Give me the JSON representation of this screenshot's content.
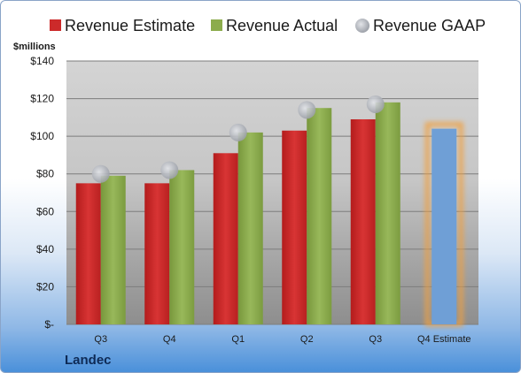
{
  "chart_data": {
    "type": "bar",
    "categories": [
      "Q3",
      "Q4",
      "Q1",
      "Q2",
      "Q3",
      "Q4 Estimate"
    ],
    "series": [
      {
        "name": "Revenue Estimate",
        "values": [
          75,
          75,
          91,
          103,
          109,
          null
        ],
        "color": "#cc2a2a"
      },
      {
        "name": "Revenue Actual",
        "values": [
          79,
          82,
          102,
          115,
          118,
          null
        ],
        "color": "#8cac4c"
      },
      {
        "name": "Revenue GAAP",
        "values": [
          80,
          82,
          102,
          114,
          117,
          null
        ],
        "color": "#b4b8c0"
      }
    ],
    "forecast": {
      "category": "Q4 Estimate",
      "value": 104,
      "color": "#6f9fd6",
      "glow": "#f0a040"
    },
    "ylabel": "$millions",
    "ylim": [
      0,
      140
    ],
    "yticks": [
      0,
      20,
      40,
      60,
      80,
      100,
      120,
      140
    ],
    "ytick_labels": [
      "$-",
      "$20",
      "$40",
      "$60",
      "$80",
      "$100",
      "$120",
      "$140"
    ],
    "grid": true,
    "legend": "top",
    "company": "Landec"
  }
}
